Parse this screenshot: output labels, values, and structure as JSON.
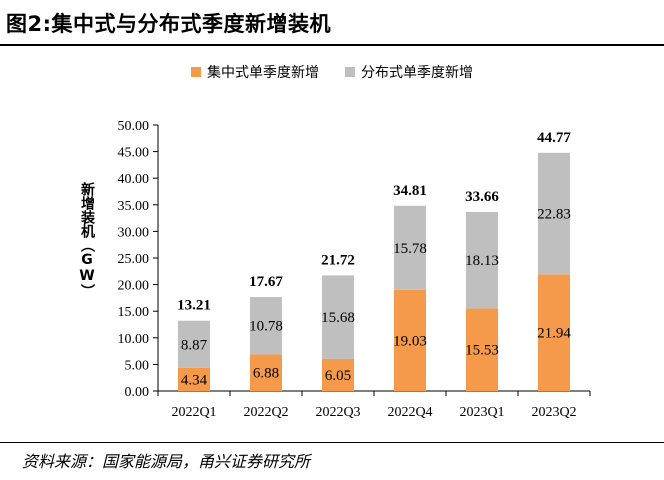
{
  "title": "图2:集中式与分布式季度新增装机",
  "source": "资料来源：国家能源局，甬兴证券研究所",
  "colors": {
    "series1": "#F59A4B",
    "series2": "#BFBFBF"
  },
  "chart_data": {
    "type": "bar",
    "stacked": true,
    "ylabel": "新增装机（GW）",
    "ylim": [
      0,
      50
    ],
    "yticks": [
      "0.00",
      "5.00",
      "10.00",
      "15.00",
      "20.00",
      "25.00",
      "30.00",
      "35.00",
      "40.00",
      "45.00",
      "50.00"
    ],
    "categories": [
      "2022Q1",
      "2022Q2",
      "2022Q3",
      "2022Q4",
      "2023Q1",
      "2023Q2"
    ],
    "series": [
      {
        "name": "集中式单季度新增",
        "values": [
          4.34,
          6.88,
          6.05,
          19.03,
          15.53,
          21.94
        ],
        "labels": [
          "4.34",
          "6.88",
          "6.05",
          "19.03",
          "15.53",
          "21.94"
        ]
      },
      {
        "name": "分布式单季度新增",
        "values": [
          8.87,
          10.78,
          15.68,
          15.78,
          18.13,
          22.83
        ],
        "labels": [
          "8.87",
          "10.78",
          "15.68",
          "15.78",
          "18.13",
          "22.83"
        ]
      }
    ],
    "totals": [
      "13.21",
      "17.67",
      "21.72",
      "34.81",
      "33.66",
      "44.77"
    ],
    "legend_position": "top",
    "grid": false
  }
}
